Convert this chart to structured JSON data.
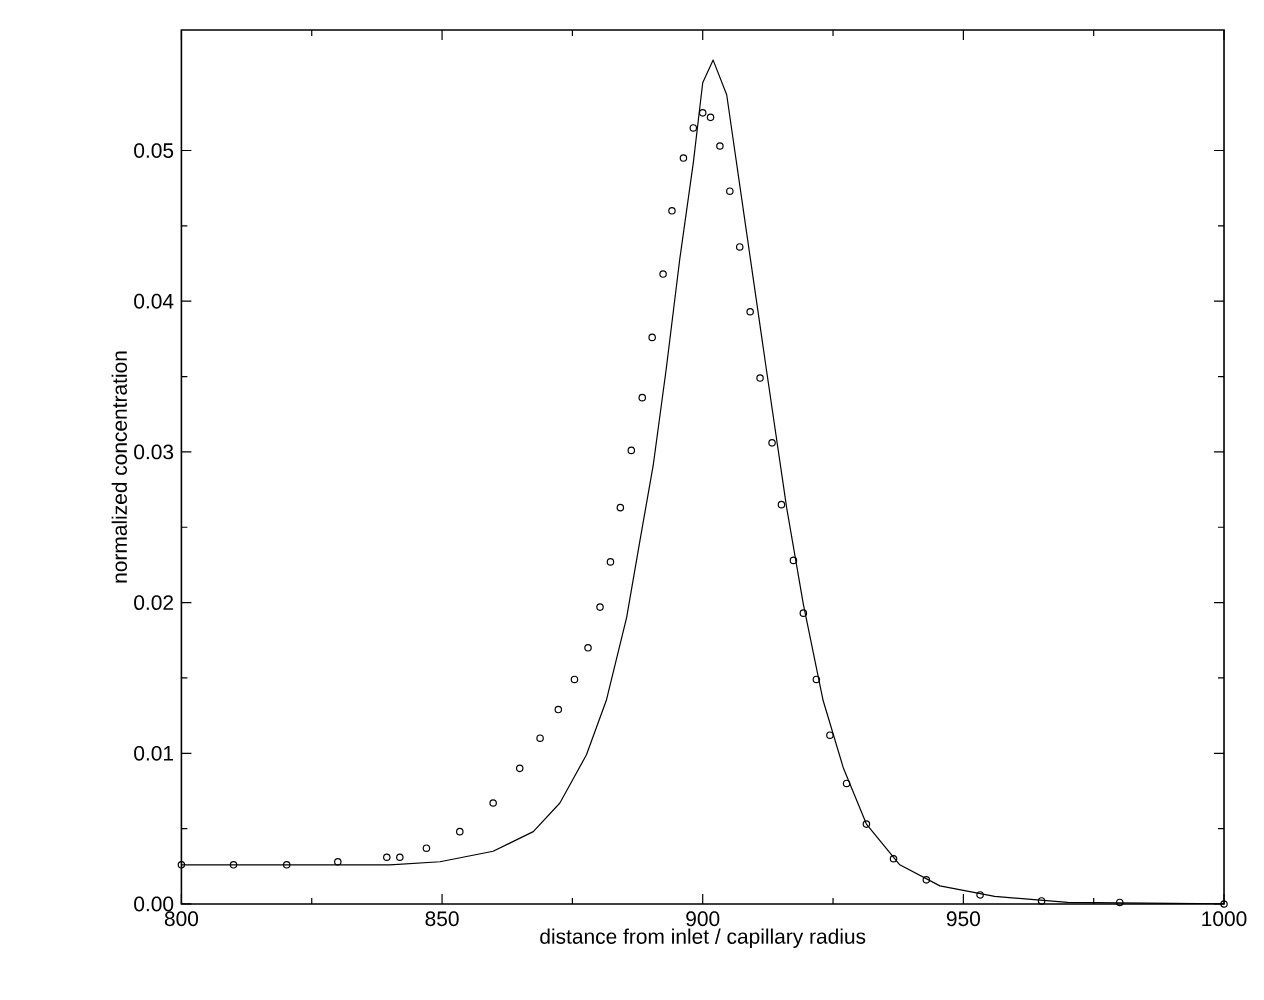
{
  "chart_data": {
    "type": "scatter",
    "xlabel": "distance from inlet / capillary radius",
    "ylabel": "normalized concentration",
    "xlim": [
      800,
      1000
    ],
    "ylim": [
      0,
      0.058
    ],
    "xticks": [
      800,
      850,
      900,
      950,
      1000
    ],
    "yticks": [
      {
        "value": 0,
        "label": "0.00"
      },
      {
        "value": 0.01,
        "label": "0.01"
      },
      {
        "value": 0.02,
        "label": "0.02"
      },
      {
        "value": 0.03,
        "label": "0.03"
      },
      {
        "value": 0.04,
        "label": "0.04"
      },
      {
        "value": 0.05,
        "label": "0.05"
      }
    ],
    "grid": false,
    "series": [
      {
        "marker": "circle",
        "color": "#000000",
        "x": [
          800,
          810,
          820.2,
          830,
          839.4,
          841.9,
          847,
          853.4,
          859.8,
          864.9,
          868.8,
          872.3,
          875.4,
          878,
          880.3,
          882.3,
          884.2,
          886.3,
          888.4,
          890.3,
          892.4,
          894.1,
          896.3,
          898.2,
          900,
          901.5,
          903.3,
          905.2,
          907.1,
          909.1,
          911,
          913.3,
          915.1,
          917.4,
          919.3,
          921.8,
          924.4,
          927.6,
          931.4,
          936.6,
          942.9,
          953.2,
          965,
          980,
          1000
        ],
        "values": [
          0.0026,
          0.0026,
          0.0026,
          0.0028,
          0.0031,
          0.0031,
          0.0037,
          0.0048,
          0.0067,
          0.009,
          0.011,
          0.0129,
          0.0149,
          0.017,
          0.0197,
          0.0227,
          0.0263,
          0.0301,
          0.0336,
          0.0376,
          0.0418,
          0.046,
          0.0495,
          0.0515,
          0.0525,
          0.0522,
          0.0503,
          0.0473,
          0.0436,
          0.0393,
          0.0349,
          0.0306,
          0.0265,
          0.0228,
          0.0193,
          0.0149,
          0.0112,
          0.008,
          0.0053,
          0.003,
          0.0016,
          0.0006,
          0.0002,
          0.0001,
          0
        ]
      },
      {
        "type": "line",
        "line_style": "solid",
        "color": "#000000",
        "x": [
          800,
          820,
          840,
          849.6,
          859.8,
          867.5,
          872.6,
          877.7,
          881.5,
          885.4,
          887.9,
          890.5,
          893,
          895.6,
          898.2,
          900,
          902,
          904.6,
          908.4,
          912.2,
          916.1,
          919.3,
          923.1,
          927,
          931.4,
          937.8,
          945.5,
          956,
          970,
          1000
        ],
        "values": [
          0.0026,
          0.0026,
          0.0026,
          0.0028,
          0.0035,
          0.0048,
          0.0067,
          0.0099,
          0.0135,
          0.019,
          0.024,
          0.0291,
          0.0355,
          0.0428,
          0.0492,
          0.0545,
          0.056,
          0.0537,
          0.0446,
          0.0355,
          0.0263,
          0.0199,
          0.0135,
          0.009,
          0.0053,
          0.0026,
          0.0012,
          0.0005,
          0.0001,
          0
        ]
      }
    ]
  }
}
